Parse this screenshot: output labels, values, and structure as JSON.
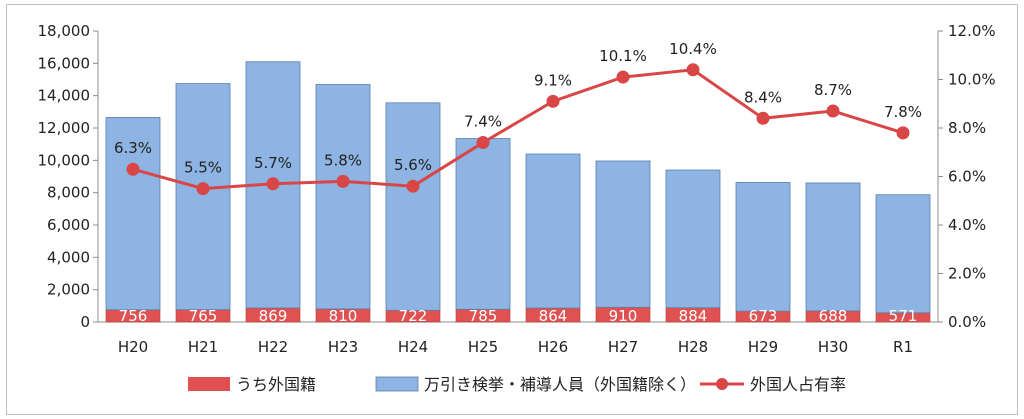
{
  "chart_data": {
    "type": "bar",
    "categories": [
      "H20",
      "H21",
      "H22",
      "H23",
      "H24",
      "H25",
      "H26",
      "H27",
      "H28",
      "H29",
      "H30",
      "R1"
    ],
    "series": [
      {
        "name": "うち外国籍",
        "kind": "bar",
        "color": "#e05252",
        "values": [
          756,
          765,
          869,
          810,
          722,
          785,
          864,
          910,
          884,
          673,
          688,
          571
        ]
      },
      {
        "name": "万引き検挙・補導人員（外国籍除く）",
        "kind": "bar",
        "color": "#8db4e2",
        "values": [
          11900,
          13985,
          15231,
          13880,
          12835,
          10565,
          9526,
          9050,
          8516,
          7960,
          7912,
          7300
        ]
      },
      {
        "name": "外国人占有率",
        "kind": "line",
        "axis": "right",
        "color": "#d94646",
        "values": [
          6.3,
          5.5,
          5.7,
          5.8,
          5.6,
          7.4,
          9.1,
          10.1,
          10.4,
          8.4,
          8.7,
          7.8
        ],
        "labels": [
          "6.3%",
          "5.5%",
          "5.7%",
          "5.8%",
          "5.6%",
          "7.4%",
          "9.1%",
          "10.1%",
          "10.4%",
          "8.4%",
          "8.7%",
          "7.8%"
        ]
      }
    ],
    "y_left": {
      "ylim": [
        0,
        18000
      ],
      "ticks": [
        "0",
        "2,000",
        "4,000",
        "6,000",
        "8,000",
        "10,000",
        "12,000",
        "14,000",
        "16,000",
        "18,000"
      ]
    },
    "y_right": {
      "ylim": [
        0,
        12
      ],
      "ticks": [
        "0.0%",
        "2.0%",
        "4.0%",
        "6.0%",
        "8.0%",
        "10.0%",
        "12.0%"
      ]
    },
    "stacked": true,
    "grid": false,
    "legend_position": "bottom"
  }
}
